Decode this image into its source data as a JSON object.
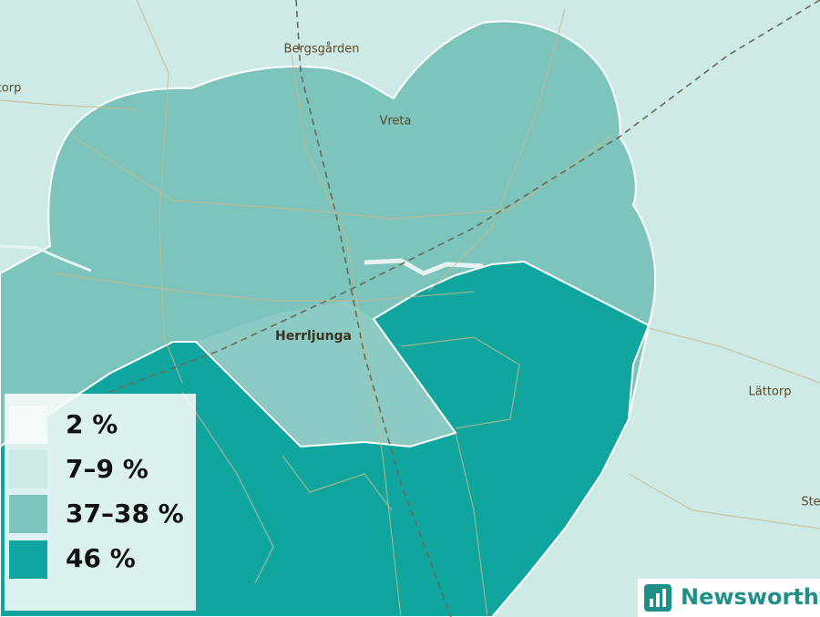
{
  "map": {
    "places": [
      {
        "label": "Bergsgården"
      },
      {
        "label": "torp"
      },
      {
        "label": "Vreta"
      },
      {
        "label": "Herrljunga"
      },
      {
        "label": "Lättorp"
      },
      {
        "label": "Ste"
      }
    ]
  },
  "legend": {
    "items": [
      {
        "label": "2 %",
        "color": "#f4fbfa"
      },
      {
        "label": "7–9 %",
        "color": "#cdeae6"
      },
      {
        "label": "37–38 %",
        "color": "#7cc4bc"
      },
      {
        "label": "46 %",
        "color": "#10a69f"
      }
    ]
  },
  "logo": {
    "text": "Newsworthy"
  }
}
